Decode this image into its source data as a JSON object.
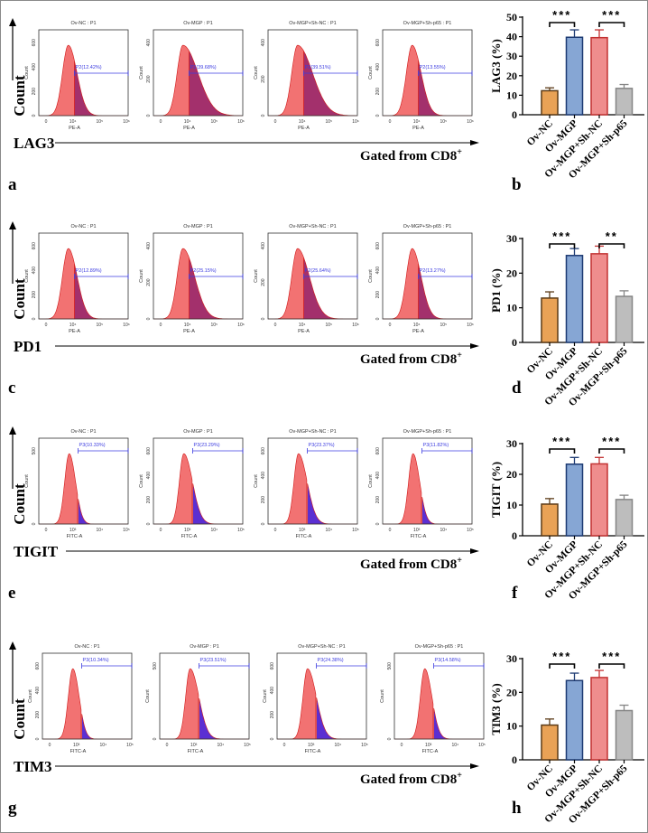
{
  "colors": {
    "orange": "#e9a256",
    "orange_edge": "#5b3a17",
    "blue": "#86a6d4",
    "blue_edge": "#1d3a72",
    "pink": "#ef8d8d",
    "pink_edge": "#c23232",
    "gray": "#bdbdbd",
    "gray_edge": "#858585",
    "hist_red": "#f27272",
    "hist_pe": "#a3306c",
    "hist_fitc": "#5b2fd2",
    "gate": "#3b3be0"
  },
  "common": {
    "count_label": "Count",
    "gated_label": "Gated from CD8",
    "gated_sup": "+",
    "panel_y_label": "Count"
  },
  "rows": [
    {
      "marker": "LAG3",
      "letter_left": "a",
      "letter_right": "b",
      "channel": "PE-A",
      "xticks": [
        "0",
        "10⁴",
        "10⁵",
        "10⁶"
      ],
      "hist_color": "#a3306c",
      "panels": [
        {
          "title": "Ov-NC : P1",
          "gate": "P2(12.42%)",
          "yticks": [
            "0",
            "200",
            "400",
            "600"
          ]
        },
        {
          "title": "Ov-MGP : P1",
          "gate": "P2(39.68%)",
          "yticks": [
            "0",
            "200",
            "400"
          ]
        },
        {
          "title": "Ov-MGP+Sh-NC : P1",
          "gate": "P2(39.51%)",
          "yticks": [
            "0",
            "200",
            "400"
          ]
        },
        {
          "title": "Ov-MGP+Sh-p65 : P1",
          "gate": "P2(13.55%)",
          "yticks": [
            "0",
            "200",
            "400",
            "600"
          ]
        }
      ]
    },
    {
      "marker": "PD1",
      "letter_left": "c",
      "letter_right": "d",
      "channel": "PE-A",
      "xticks": [
        "0",
        "10⁴",
        "10⁵",
        "10⁶"
      ],
      "hist_color": "#a3306c",
      "panels": [
        {
          "title": "Ov-NC : P1",
          "gate": "P2(12.89%)",
          "yticks": [
            "0",
            "200",
            "400",
            "600"
          ]
        },
        {
          "title": "Ov-MGP : P1",
          "gate": "P2(25.15%)",
          "yticks": [
            "0",
            "200",
            "400"
          ]
        },
        {
          "title": "Ov-MGP+Sh-NC : P1",
          "gate": "P2(25.64%)",
          "yticks": [
            "0",
            "200",
            "400"
          ]
        },
        {
          "title": "Ov-MGP+Sh-p65 : P1",
          "gate": "P2(13.27%)",
          "yticks": [
            "0",
            "200",
            "400",
            "600"
          ]
        }
      ]
    },
    {
      "marker": "TIGIT",
      "letter_left": "e",
      "letter_right": "f",
      "channel": "FITC-A",
      "xticks": [
        "0",
        "10³",
        "10⁴",
        "10⁵"
      ],
      "hist_color": "#5b2fd2",
      "panels": [
        {
          "title": "Ov-NC : P1",
          "gate": "P3(10.33%)",
          "yticks": [
            "0",
            "500"
          ]
        },
        {
          "title": "Ov-MGP : P1",
          "gate": "P3(23.29%)",
          "yticks": [
            "0",
            "200",
            "400",
            "600"
          ]
        },
        {
          "title": "Ov-MGP+Sh-NC : P1",
          "gate": "P3(23.37%)",
          "yticks": [
            "0",
            "200",
            "400",
            "600"
          ]
        },
        {
          "title": "Ov-MGP+Sh-p65 : P1",
          "gate": "P3(11.82%)",
          "yticks": [
            "0",
            "200",
            "400",
            "600"
          ]
        }
      ]
    },
    {
      "marker": "TIM3",
      "letter_left": "g",
      "letter_right": "h",
      "channel": "FITC-A",
      "xticks": [
        "0",
        "10³",
        "10⁴",
        "10⁵"
      ],
      "hist_color": "#5b2fd2",
      "panels": [
        {
          "title": "Ov-NC : P1",
          "gate": "P3(10.34%)",
          "yticks": [
            "0",
            "200",
            "400",
            "600"
          ]
        },
        {
          "title": "Ov-MGP : P1",
          "gate": "P3(23.51%)",
          "yticks": [
            "0",
            "500"
          ]
        },
        {
          "title": "Ov-MGP+Sh-NC : P1",
          "gate": "P3(24.38%)",
          "yticks": [
            "0",
            "200",
            "400",
            "600"
          ]
        },
        {
          "title": "Ov-MGP+Sh-p65 : P1",
          "gate": "P3(14.58%)",
          "yticks": [
            "0",
            "500"
          ]
        }
      ]
    }
  ],
  "chart_data": [
    {
      "type": "bar",
      "ylabel": "LAG3 (%)",
      "categories": [
        "Ov-NC",
        "Ov-MGP",
        "Ov-MGP+Sh-NC",
        "Ov-MGP+Sh-p65"
      ],
      "values": [
        12.3,
        39.7,
        39.5,
        13.5
      ],
      "errors": [
        1.5,
        3.8,
        4.0,
        2.0
      ],
      "ylim": [
        0,
        50
      ],
      "yticks": [
        "0",
        "10",
        "20",
        "30",
        "40",
        "50"
      ],
      "significance": [
        {
          "groups": [
            0,
            1
          ],
          "label": "***"
        },
        {
          "groups": [
            2,
            3
          ],
          "label": "***"
        }
      ]
    },
    {
      "type": "bar",
      "ylabel": "PD1 (%)",
      "categories": [
        "Ov-NC",
        "Ov-MGP",
        "Ov-MGP+Sh-NC",
        "Ov-MGP+Sh-p65"
      ],
      "values": [
        12.8,
        25.1,
        25.6,
        13.3
      ],
      "errors": [
        1.8,
        2.0,
        2.2,
        1.6
      ],
      "ylim": [
        0,
        30
      ],
      "yticks": [
        "0",
        "10",
        "20",
        "30"
      ],
      "significance": [
        {
          "groups": [
            0,
            1
          ],
          "label": "***"
        },
        {
          "groups": [
            2,
            3
          ],
          "label": "**"
        }
      ]
    },
    {
      "type": "bar",
      "ylabel": "TIGIT (%)",
      "categories": [
        "Ov-NC",
        "Ov-MGP",
        "Ov-MGP+Sh-NC",
        "Ov-MGP+Sh-p65"
      ],
      "values": [
        10.3,
        23.3,
        23.4,
        11.8
      ],
      "errors": [
        1.8,
        2.2,
        2.1,
        1.4
      ],
      "ylim": [
        0,
        30
      ],
      "yticks": [
        "0",
        "10",
        "20",
        "30"
      ],
      "significance": [
        {
          "groups": [
            0,
            1
          ],
          "label": "***"
        },
        {
          "groups": [
            2,
            3
          ],
          "label": "***"
        }
      ]
    },
    {
      "type": "bar",
      "ylabel": "TIM3 (%)",
      "categories": [
        "Ov-NC",
        "Ov-MGP",
        "Ov-MGP+Sh-NC",
        "Ov-MGP+Sh-p65"
      ],
      "values": [
        10.3,
        23.5,
        24.4,
        14.6
      ],
      "errors": [
        1.8,
        2.2,
        2.1,
        1.6
      ],
      "ylim": [
        0,
        30
      ],
      "yticks": [
        "0",
        "10",
        "20",
        "30"
      ],
      "significance": [
        {
          "groups": [
            0,
            1
          ],
          "label": "***"
        },
        {
          "groups": [
            2,
            3
          ],
          "label": "***"
        }
      ]
    }
  ]
}
